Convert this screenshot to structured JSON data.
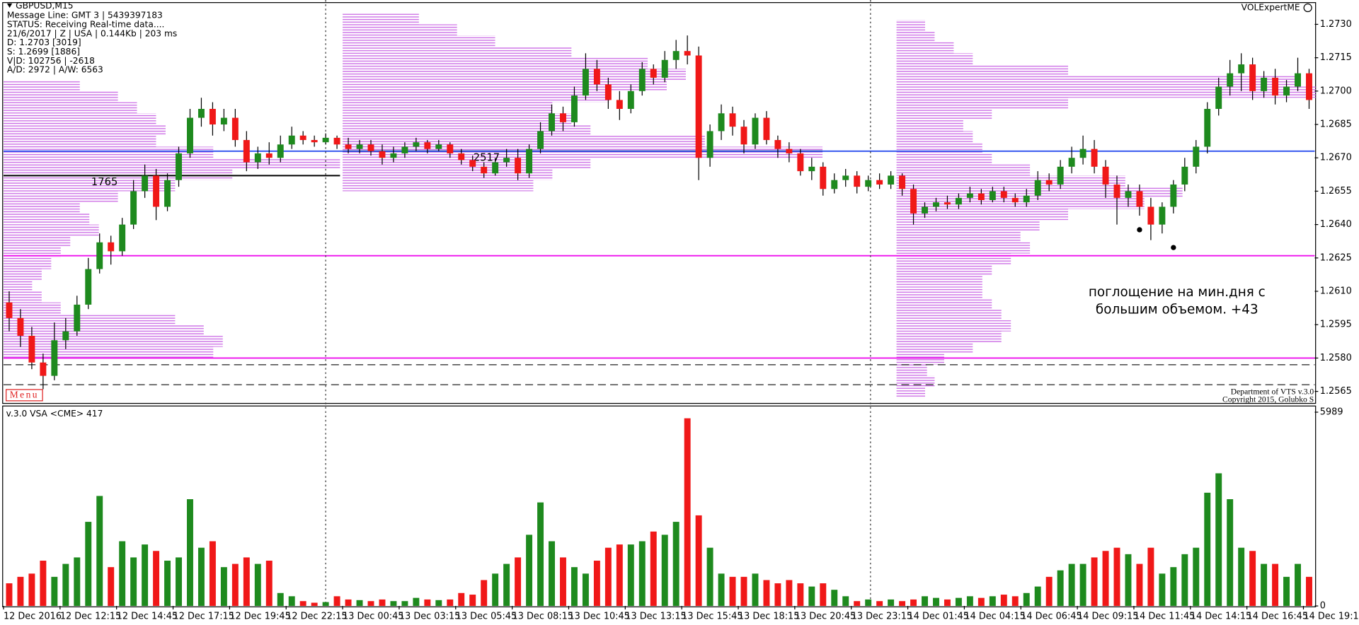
{
  "chart_data": {
    "type": "candlestick",
    "symbol": "GBPUSD,M15",
    "info": [
      "Message Line: GMT 3 | 5439397183",
      "STATUS:  Receiving Real-time data....",
      "21/6/2017 | Z | USA | 0.144Kb | 203 ms",
      "D: 1.2703  [3019]",
      "S: 1.2699  [1886]",
      "V|D: 102756 | -2618",
      "A/D: 2972 | A/W: 6563"
    ],
    "expert": "VOLExpertME",
    "menu": "Menu",
    "footer": [
      "Department of VTS  v.3.0",
      "Copyright 2015, Golubko S"
    ],
    "annotation": [
      "поглощение на мин.дня с",
      "большим объемом. +43"
    ],
    "up_color": "#1e8a1e",
    "down_color": "#f01818",
    "categories": [
      "12 Dec 2016",
      null,
      null,
      null,
      null,
      "12 Dec 12:15",
      null,
      null,
      null,
      null,
      "12 Dec 14:45",
      null,
      null,
      null,
      null,
      "12 Dec 17:15",
      null,
      null,
      null,
      null,
      "12 Dec 19:45",
      null,
      null,
      null,
      null,
      "12 Dec 22:15",
      null,
      null,
      null,
      null,
      "13 Dec 00:45",
      null,
      null,
      null,
      null,
      "13 Dec 03:15",
      null,
      null,
      null,
      null,
      "13 Dec 05:45",
      null,
      null,
      null,
      null,
      "13 Dec 08:15",
      null,
      null,
      null,
      null,
      "13 Dec 10:45",
      null,
      null,
      null,
      null,
      "13 Dec 13:15",
      null,
      null,
      null,
      null,
      "13 Dec 15:45",
      null,
      null,
      null,
      null,
      "13 Dec 18:15",
      null,
      null,
      null,
      null,
      "13 Dec 20:45",
      null,
      null,
      null,
      null,
      "13 Dec 23:15",
      null,
      null,
      null,
      null,
      "14 Dec 01:45",
      null,
      null,
      null,
      null,
      "14 Dec 04:15",
      null,
      null,
      null,
      null,
      "14 Dec 06:45",
      null,
      null,
      null,
      null,
      "14 Dec 09:15",
      null,
      null,
      null,
      null,
      "14 Dec 11:45",
      null,
      null,
      null,
      null,
      "14 Dec 14:15",
      null,
      null,
      null,
      null,
      "14 Dec 16:45",
      null,
      null,
      null,
      null,
      "14 Dec 19:1"
    ],
    "open": [
      1.2605,
      1.2598,
      1.259,
      1.2578,
      1.2572,
      1.2588,
      1.2592,
      1.2604,
      1.262,
      1.2632,
      1.2628,
      1.264,
      1.2655,
      1.2662,
      1.2648,
      1.266,
      1.2672,
      1.2688,
      1.2692,
      1.2685,
      1.2688,
      1.2678,
      1.2668,
      1.2672,
      1.267,
      1.2676,
      1.268,
      1.2678,
      1.2677,
      1.2679,
      1.2676,
      1.2674,
      1.2676,
      1.2673,
      1.267,
      1.2672,
      1.2675,
      1.2677,
      1.2674,
      1.2676,
      1.2672,
      1.2669,
      1.2666,
      1.2663,
      1.2668,
      1.267,
      1.2663,
      1.2674,
      1.2682,
      1.269,
      1.2686,
      1.2698,
      1.271,
      1.2703,
      1.2696,
      1.2692,
      1.27,
      1.271,
      1.2706,
      1.2714,
      1.2718,
      1.2716,
      1.267,
      1.2682,
      1.269,
      1.2684,
      1.2676,
      1.2688,
      1.2678,
      1.2674,
      1.2672,
      1.2664,
      1.2666,
      1.2656,
      1.266,
      1.2662,
      1.2657,
      1.266,
      1.2658,
      1.2662,
      1.2656,
      1.2645,
      1.2648,
      1.265,
      1.2649,
      1.2652,
      1.2654,
      1.2651,
      1.2655,
      1.2652,
      1.265,
      1.2653,
      1.266,
      1.2658,
      1.2666,
      1.267,
      1.2674,
      1.2666,
      1.2658,
      1.2652,
      1.2655,
      1.2648,
      1.264,
      1.2648,
      1.2658,
      1.2666,
      1.2675,
      1.2692,
      1.2702,
      1.2708,
      1.2712,
      1.27,
      1.2706,
      1.2698,
      1.2702,
      1.2708
    ],
    "high": [
      1.261,
      1.2602,
      1.2594,
      1.2582,
      1.2596,
      1.2598,
      1.2608,
      1.2625,
      1.2636,
      1.2635,
      1.2643,
      1.266,
      1.2667,
      1.2665,
      1.2663,
      1.2675,
      1.2692,
      1.2697,
      1.2695,
      1.2692,
      1.2692,
      1.2682,
      1.2675,
      1.2677,
      1.268,
      1.2684,
      1.2682,
      1.268,
      1.2681,
      1.268,
      1.2679,
      1.2678,
      1.2678,
      1.2676,
      1.2675,
      1.2677,
      1.2679,
      1.2678,
      1.2678,
      1.2677,
      1.2674,
      1.2671,
      1.2668,
      1.267,
      1.2674,
      1.2674,
      1.2676,
      1.2686,
      1.2694,
      1.2693,
      1.2702,
      1.2717,
      1.2714,
      1.2706,
      1.27,
      1.2703,
      1.2713,
      1.2712,
      1.2718,
      1.2723,
      1.2725,
      1.272,
      1.2685,
      1.2694,
      1.2693,
      1.2687,
      1.269,
      1.2691,
      1.268,
      1.2677,
      1.2674,
      1.267,
      1.2668,
      1.2663,
      1.2665,
      1.2664,
      1.2662,
      1.2663,
      1.2664,
      1.2663,
      1.2658,
      1.265,
      1.2652,
      1.2653,
      1.2654,
      1.2657,
      1.2656,
      1.2657,
      1.2657,
      1.2654,
      1.2656,
      1.2664,
      1.2663,
      1.2669,
      1.2675,
      1.268,
      1.2678,
      1.2669,
      1.2662,
      1.2658,
      1.2658,
      1.2652,
      1.265,
      1.266,
      1.267,
      1.2678,
      1.2695,
      1.2706,
      1.2714,
      1.2717,
      1.2715,
      1.2709,
      1.271,
      1.2705,
      1.2715,
      1.271
    ],
    "low": [
      1.2592,
      1.2585,
      1.2575,
      1.2566,
      1.257,
      1.2584,
      1.259,
      1.2602,
      1.2618,
      1.2622,
      1.2626,
      1.2638,
      1.2652,
      1.2642,
      1.2646,
      1.2657,
      1.267,
      1.2684,
      1.268,
      1.2682,
      1.2675,
      1.2664,
      1.2665,
      1.2667,
      1.2668,
      1.2674,
      1.2676,
      1.2675,
      1.2676,
      1.2674,
      1.2672,
      1.2672,
      1.2671,
      1.2667,
      1.2668,
      1.267,
      1.2673,
      1.2672,
      1.2673,
      1.267,
      1.2667,
      1.2664,
      1.2661,
      1.2662,
      1.2666,
      1.266,
      1.2661,
      1.2672,
      1.268,
      1.2682,
      1.2684,
      1.2696,
      1.27,
      1.2692,
      1.2687,
      1.269,
      1.2698,
      1.2703,
      1.2704,
      1.271,
      1.2712,
      1.266,
      1.2666,
      1.2678,
      1.268,
      1.2672,
      1.2674,
      1.2676,
      1.267,
      1.2668,
      1.2662,
      1.266,
      1.2653,
      1.2654,
      1.2657,
      1.2654,
      1.2655,
      1.2656,
      1.2656,
      1.2653,
      1.264,
      1.2643,
      1.2646,
      1.2647,
      1.2647,
      1.265,
      1.2649,
      1.265,
      1.265,
      1.2648,
      1.2648,
      1.2651,
      1.2655,
      1.2656,
      1.2663,
      1.2667,
      1.2663,
      1.2652,
      1.264,
      1.2648,
      1.2644,
      1.2633,
      1.2636,
      1.2645,
      1.2655,
      1.2663,
      1.2672,
      1.2689,
      1.2698,
      1.27,
      1.2696,
      1.2697,
      1.2694,
      1.2695,
      1.27,
      1.2692
    ],
    "close": [
      1.2598,
      1.259,
      1.2578,
      1.2572,
      1.2588,
      1.2592,
      1.2604,
      1.262,
      1.2632,
      1.2628,
      1.264,
      1.2655,
      1.2662,
      1.2648,
      1.266,
      1.2672,
      1.2688,
      1.2692,
      1.2685,
      1.2688,
      1.2678,
      1.2668,
      1.2672,
      1.267,
      1.2676,
      1.268,
      1.2678,
      1.2677,
      1.2679,
      1.2676,
      1.2674,
      1.2676,
      1.2673,
      1.267,
      1.2672,
      1.2675,
      1.2677,
      1.2674,
      1.2676,
      1.2672,
      1.2669,
      1.2666,
      1.2663,
      1.2668,
      1.267,
      1.2663,
      1.2674,
      1.2682,
      1.269,
      1.2686,
      1.2698,
      1.271,
      1.2703,
      1.2696,
      1.2692,
      1.27,
      1.271,
      1.2706,
      1.2714,
      1.2718,
      1.2716,
      1.267,
      1.2682,
      1.269,
      1.2684,
      1.2676,
      1.2688,
      1.2678,
      1.2674,
      1.2672,
      1.2664,
      1.2666,
      1.2656,
      1.266,
      1.2662,
      1.2657,
      1.266,
      1.2658,
      1.2662,
      1.2656,
      1.2645,
      1.2648,
      1.265,
      1.2649,
      1.2652,
      1.2654,
      1.2651,
      1.2655,
      1.2652,
      1.265,
      1.2653,
      1.266,
      1.2658,
      1.2666,
      1.267,
      1.2674,
      1.2666,
      1.2658,
      1.2652,
      1.2655,
      1.2648,
      1.264,
      1.2648,
      1.2658,
      1.2666,
      1.2675,
      1.2692,
      1.2702,
      1.2708,
      1.2712,
      1.27,
      1.2706,
      1.2698,
      1.2702,
      1.2708,
      1.2696
    ],
    "ylim": [
      1.256,
      1.2739
    ],
    "yticks": [
      {
        "value": 1.2565,
        "label": "1.2565"
      },
      {
        "value": 1.258,
        "label": "1.2580"
      },
      {
        "value": 1.2595,
        "label": "1.2595"
      },
      {
        "value": 1.261,
        "label": "1.2610"
      },
      {
        "value": 1.2625,
        "label": "1.2625"
      },
      {
        "value": 1.264,
        "label": "1.2640"
      },
      {
        "value": 1.2655,
        "label": "1.2655"
      },
      {
        "value": 1.267,
        "label": "1.2670"
      },
      {
        "value": 1.2685,
        "label": "1.2685"
      },
      {
        "value": 1.27,
        "label": "1.2700"
      },
      {
        "value": 1.2715,
        "label": "1.2715"
      },
      {
        "value": 1.273,
        "label": "1.2730"
      }
    ],
    "hlines": [
      {
        "value": 1.2673,
        "color": "#2a4fee"
      },
      {
        "value": 1.2626,
        "color": "#ee10ee"
      },
      {
        "value": 1.258,
        "color": "#ee10ee"
      },
      {
        "value": 1.2577,
        "color": "#222222",
        "dash": true
      },
      {
        "value": 1.2568,
        "color": "#222222",
        "dash": true
      }
    ],
    "separators": [
      28.5,
      76.7
    ],
    "dots": [
      {
        "x": 100,
        "y": 1.264
      },
      {
        "x": 103,
        "y": 1.2632
      }
    ],
    "profile_color": "#c14fe0",
    "profiles": [
      {
        "from": 0,
        "low": 1.258,
        "step": 0.0005,
        "volumes": [
          1100,
          1150,
          1050,
          900,
          300,
          200,
          150,
          200,
          250,
          300,
          350,
          500,
          450,
          400,
          600,
          900,
          1200,
          1765,
          1100,
          800,
          850,
          800,
          700,
          600,
          400
        ],
        "poc": 1765,
        "poc_price": 1.2662
      },
      {
        "from": 30,
        "low": 1.2655,
        "step": 0.0005,
        "volumes": [
          1000,
          1100,
          1300,
          2517,
          1900,
          1300,
          1200,
          1100,
          1400,
          1700,
          1800,
          1600,
          1200,
          800,
          600,
          400
        ],
        "poc": 2517,
        "poc_price": 1.2673
      },
      {
        "from": 79,
        "low": 1.2562,
        "step": 0.0005,
        "volumes": [
          150,
          200,
          160,
          250,
          400,
          550,
          600,
          550,
          500,
          450,
          450,
          500,
          600,
          700,
          650,
          750,
          900,
          1300,
          1500,
          1200,
          700,
          500,
          450,
          400,
          350,
          500,
          900,
          2200,
          2100,
          900,
          400,
          300,
          200,
          150
        ]
      }
    ],
    "volume_panel": {
      "title": "v.3.0 VSA <CME> 417",
      "ylim": [
        0,
        6100
      ],
      "yticks": [
        5989,
        0
      ],
      "values": [
        700,
        900,
        1000,
        1400,
        900,
        1300,
        1500,
        2600,
        3400,
        1200,
        2000,
        1500,
        1900,
        1700,
        1400,
        1500,
        3300,
        1800,
        2000,
        1200,
        1300,
        1500,
        1300,
        1400,
        400,
        300,
        150,
        100,
        120,
        300,
        200,
        180,
        150,
        200,
        150,
        150,
        250,
        200,
        180,
        200,
        400,
        350,
        800,
        1000,
        1300,
        1500,
        2200,
        3200,
        2000,
        1500,
        1200,
        1000,
        1400,
        1800,
        1900,
        1900,
        2000,
        2300,
        2200,
        2600,
        5800,
        2800,
        1800,
        1000,
        900,
        900,
        1000,
        800,
        700,
        800,
        700,
        600,
        700,
        500,
        300,
        150,
        200,
        150,
        200,
        150,
        200,
        300,
        250,
        200,
        250,
        300,
        250,
        300,
        350,
        300,
        400,
        600,
        900,
        1100,
        1300,
        1300,
        1500,
        1700,
        1800,
        1600,
        1300,
        1800,
        1000,
        1200,
        1600,
        1800,
        3500,
        4100,
        3300,
        1800,
        1700,
        1300,
        1300,
        900,
        1300,
        900
      ]
    }
  }
}
